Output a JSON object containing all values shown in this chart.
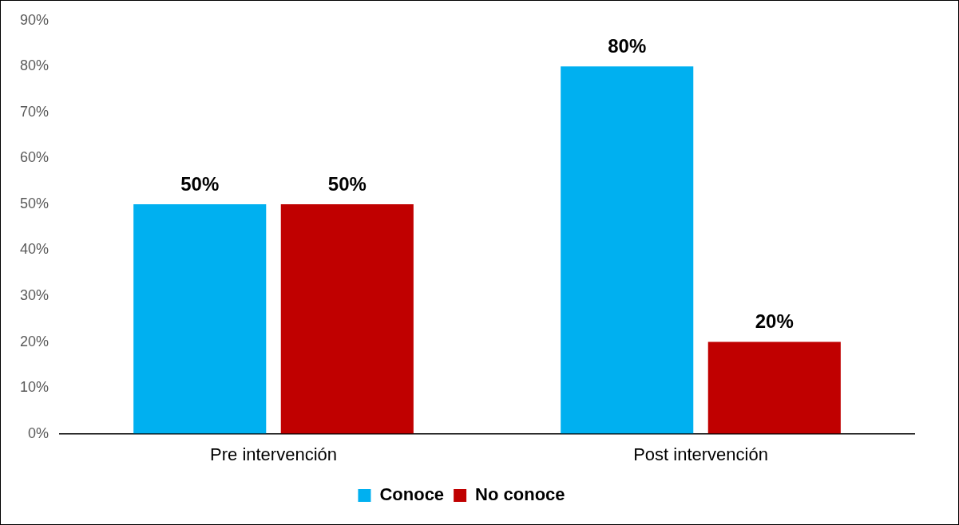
{
  "chart_data": {
    "type": "bar",
    "categories": [
      "Pre intervención",
      "Post intervención"
    ],
    "series": [
      {
        "name": "Conoce",
        "color": "#00b0f0",
        "values": [
          50,
          80
        ],
        "value_labels": [
          "50%",
          "80%"
        ]
      },
      {
        "name": "No conoce",
        "color": "#c00000",
        "values": [
          50,
          20
        ],
        "value_labels": [
          "50%",
          "20%"
        ]
      }
    ],
    "ylim": [
      0,
      90
    ],
    "yticks": [
      {
        "value": 0,
        "label": "0%"
      },
      {
        "value": 10,
        "label": "10%"
      },
      {
        "value": 20,
        "label": "20%"
      },
      {
        "value": 30,
        "label": "30%"
      },
      {
        "value": 40,
        "label": "40%"
      },
      {
        "value": 50,
        "label": "50%"
      },
      {
        "value": 60,
        "label": "60%"
      },
      {
        "value": 70,
        "label": "70%"
      },
      {
        "value": 80,
        "label": "80%"
      },
      {
        "value": 90,
        "label": "90%"
      }
    ],
    "grid": false,
    "legend": "bottom"
  }
}
